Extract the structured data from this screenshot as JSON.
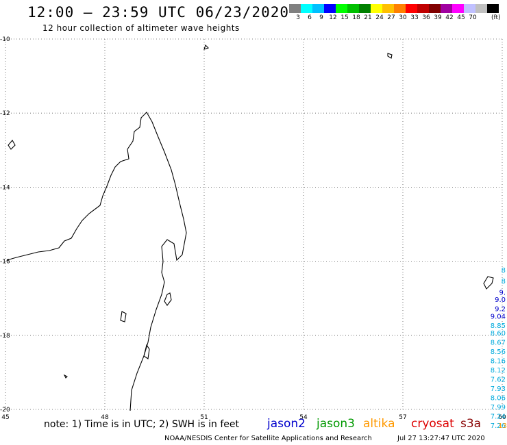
{
  "header": {
    "title": "12:00 – 23:59 UTC 06/23/2020",
    "subtitle": "12 hour collection of altimeter wave heights"
  },
  "legend": {
    "colors": [
      "#808080",
      "#00ffff",
      "#00c0ff",
      "#0000ff",
      "#00ff00",
      "#00c000",
      "#008000",
      "#ffff00",
      "#ffc000",
      "#ff8000",
      "#ff0000",
      "#c00000",
      "#800000",
      "#a000a0",
      "#ff00ff",
      "#c0c0ff",
      "#c0c0c0",
      "#000000"
    ],
    "labels": [
      "3",
      "6",
      "9",
      "12",
      "15",
      "18",
      "21",
      "24",
      "27",
      "30",
      "33",
      "36",
      "39",
      "42",
      "45",
      "70"
    ],
    "unit": "(ft)"
  },
  "map": {
    "lon_ticks": [
      "45",
      "48",
      "51",
      "54",
      "57",
      "60"
    ],
    "lat_ticks": [
      "-10",
      "-12",
      "-14",
      "-16",
      "-18",
      "-20"
    ]
  },
  "observations": [
    {
      "lat": -16.3,
      "text": "8",
      "color": "#00aadd"
    },
    {
      "lat": -16.6,
      "text": "8",
      "color": "#00aadd"
    },
    {
      "lat": -16.9,
      "text": "9.",
      "color": "#0000cc"
    },
    {
      "lat": -17.1,
      "text": "9.0",
      "color": "#0000cc"
    },
    {
      "lat": -17.35,
      "text": "9.2",
      "color": "#0000cc"
    },
    {
      "lat": -17.55,
      "text": "9.04",
      "color": "#0000cc"
    },
    {
      "lat": -17.8,
      "text": "8.85",
      "color": "#00aadd"
    },
    {
      "lat": -18.0,
      "text": "8.60",
      "color": "#00aadd"
    },
    {
      "lat": -18.25,
      "text": "8.67",
      "color": "#00aadd"
    },
    {
      "lat": -18.5,
      "text": "8.56",
      "color": "#00aadd"
    },
    {
      "lat": -18.75,
      "text": "8.16",
      "color": "#00aadd"
    },
    {
      "lat": -19.0,
      "text": "8.12",
      "color": "#00aadd"
    },
    {
      "lat": -19.25,
      "text": "7.62",
      "color": "#00aadd"
    },
    {
      "lat": -19.5,
      "text": "7.93",
      "color": "#00aadd"
    },
    {
      "lat": -19.75,
      "text": "8.06",
      "color": "#00aadd"
    },
    {
      "lat": -20.0,
      "text": "7.99",
      "color": "#00aadd"
    },
    {
      "lat": -20.25,
      "text": "7.24",
      "color": "#00aadd"
    },
    {
      "lat": -20.5,
      "text": "7.26",
      "color": "#00aadd"
    },
    {
      "lat": -20.5,
      "text": "13",
      "color": "#ff9900"
    }
  ],
  "footer": {
    "note": "note: 1) Time is in UTC; 2) SWH is in feet",
    "satellites": [
      {
        "name": "jason2",
        "color": "#0000cc"
      },
      {
        "name": "jason3",
        "color": "#009900"
      },
      {
        "name": "altika",
        "color": "#ff9900"
      },
      {
        "name": "cryosat",
        "color": "#dd0000"
      },
      {
        "name": "s3a",
        "color": "#880000"
      }
    ],
    "credit": "NOAA/NESDIS Center for Satellite Applications and Research",
    "date": "Jul 27 13:27:47 UTC 2020"
  }
}
